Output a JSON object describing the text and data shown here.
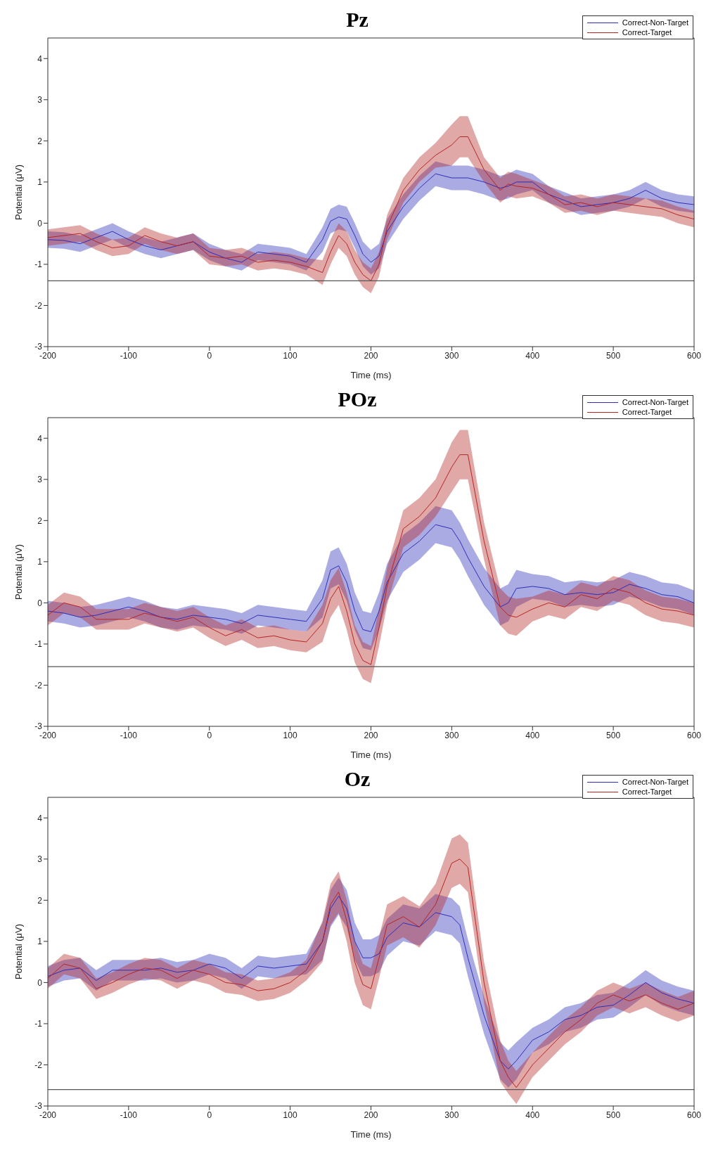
{
  "chart_data": [
    {
      "type": "line",
      "title": "Pz",
      "xlabel": "Time (ms)",
      "ylabel": "Potential (μV)",
      "xlim": [
        -200,
        600
      ],
      "ylim": [
        -3,
        4.5
      ],
      "xticks": [
        -200,
        -100,
        0,
        100,
        200,
        300,
        400,
        500,
        600
      ],
      "yticks": [
        -3,
        -2,
        -1,
        0,
        1,
        2,
        3,
        4
      ],
      "legend": "top right",
      "ref_lines": [
        {
          "axis": "y",
          "value": -1.4,
          "color": "#555555"
        }
      ],
      "x": [
        -200,
        -180,
        -160,
        -140,
        -120,
        -100,
        -80,
        -60,
        -40,
        -20,
        0,
        20,
        40,
        60,
        80,
        100,
        120,
        140,
        150,
        160,
        170,
        180,
        190,
        200,
        210,
        220,
        240,
        260,
        280,
        300,
        310,
        320,
        340,
        360,
        370,
        380,
        400,
        420,
        440,
        460,
        480,
        500,
        520,
        540,
        560,
        580,
        600
      ],
      "series": [
        {
          "name": "Correct-Non-Target",
          "color": "#2e2eb8",
          "values": [
            -0.4,
            -0.42,
            -0.5,
            -0.35,
            -0.2,
            -0.4,
            -0.55,
            -0.65,
            -0.55,
            -0.45,
            -0.7,
            -0.85,
            -0.95,
            -0.7,
            -0.75,
            -0.8,
            -0.95,
            -0.4,
            0.05,
            0.15,
            0.1,
            -0.3,
            -0.75,
            -0.95,
            -0.8,
            -0.2,
            0.4,
            0.85,
            1.2,
            1.1,
            1.1,
            1.1,
            1.0,
            0.85,
            0.9,
            1.0,
            1.0,
            0.7,
            0.55,
            0.4,
            0.45,
            0.5,
            0.6,
            0.8,
            0.6,
            0.5,
            0.45
          ],
          "lower": [
            -0.6,
            -0.62,
            -0.7,
            -0.55,
            -0.4,
            -0.6,
            -0.75,
            -0.85,
            -0.75,
            -0.65,
            -0.9,
            -1.05,
            -1.15,
            -0.9,
            -0.95,
            -1.0,
            -1.15,
            -0.7,
            -0.25,
            -0.15,
            -0.2,
            -0.6,
            -1.05,
            -1.25,
            -1.1,
            -0.5,
            0.1,
            0.55,
            0.9,
            0.8,
            0.8,
            0.8,
            0.7,
            0.55,
            0.6,
            0.7,
            0.8,
            0.5,
            0.35,
            0.2,
            0.25,
            0.3,
            0.4,
            0.6,
            0.4,
            0.3,
            0.25
          ],
          "upper": [
            -0.2,
            -0.22,
            -0.3,
            -0.15,
            0.0,
            -0.2,
            -0.35,
            -0.45,
            -0.35,
            -0.25,
            -0.5,
            -0.65,
            -0.75,
            -0.5,
            -0.55,
            -0.6,
            -0.75,
            -0.1,
            0.35,
            0.45,
            0.4,
            0.0,
            -0.45,
            -0.65,
            -0.5,
            0.1,
            0.7,
            1.15,
            1.5,
            1.4,
            1.4,
            1.4,
            1.3,
            1.15,
            1.2,
            1.3,
            1.2,
            0.9,
            0.75,
            0.6,
            0.65,
            0.7,
            0.8,
            1.0,
            0.8,
            0.7,
            0.65
          ]
        },
        {
          "name": "Correct-Target",
          "color": "#b52525",
          "values": [
            -0.35,
            -0.3,
            -0.25,
            -0.45,
            -0.6,
            -0.55,
            -0.3,
            -0.45,
            -0.55,
            -0.45,
            -0.8,
            -0.85,
            -0.8,
            -0.95,
            -0.9,
            -0.95,
            -1.05,
            -1.2,
            -0.7,
            -0.3,
            -0.5,
            -0.95,
            -1.25,
            -1.4,
            -1.0,
            -0.1,
            0.8,
            1.3,
            1.65,
            1.9,
            2.1,
            2.1,
            1.3,
            0.8,
            0.95,
            0.9,
            0.85,
            0.7,
            0.45,
            0.5,
            0.4,
            0.5,
            0.45,
            0.4,
            0.35,
            0.2,
            0.1
          ],
          "lower": [
            -0.55,
            -0.5,
            -0.45,
            -0.65,
            -0.8,
            -0.75,
            -0.5,
            -0.65,
            -0.75,
            -0.65,
            -1.0,
            -1.05,
            -1.0,
            -1.15,
            -1.1,
            -1.15,
            -1.25,
            -1.5,
            -1.0,
            -0.6,
            -0.8,
            -1.25,
            -1.55,
            -1.7,
            -1.3,
            -0.4,
            0.5,
            1.0,
            1.35,
            1.4,
            1.6,
            1.6,
            1.0,
            0.5,
            0.65,
            0.6,
            0.65,
            0.5,
            0.25,
            0.3,
            0.2,
            0.3,
            0.25,
            0.2,
            0.15,
            0.0,
            -0.1
          ],
          "upper": [
            -0.15,
            -0.1,
            -0.05,
            -0.25,
            -0.4,
            -0.35,
            -0.1,
            -0.25,
            -0.35,
            -0.25,
            -0.6,
            -0.65,
            -0.6,
            -0.75,
            -0.7,
            -0.75,
            -0.85,
            -0.9,
            -0.4,
            0.0,
            -0.2,
            -0.65,
            -0.95,
            -1.1,
            -0.7,
            0.2,
            1.1,
            1.6,
            1.95,
            2.4,
            2.6,
            2.6,
            1.6,
            1.1,
            1.25,
            1.2,
            1.05,
            0.9,
            0.65,
            0.7,
            0.6,
            0.7,
            0.65,
            0.6,
            0.55,
            0.4,
            0.3
          ]
        }
      ]
    },
    {
      "type": "line",
      "title": "POz",
      "xlabel": "Time (ms)",
      "ylabel": "Potential (μV)",
      "xlim": [
        -200,
        600
      ],
      "ylim": [
        -3,
        4.5
      ],
      "xticks": [
        -200,
        -100,
        0,
        100,
        200,
        300,
        400,
        500,
        600
      ],
      "yticks": [
        -3,
        -2,
        -1,
        0,
        1,
        2,
        3,
        4
      ],
      "legend": "top right",
      "ref_lines": [
        {
          "axis": "y",
          "value": -1.55,
          "color": "#555555"
        }
      ],
      "x": [
        -200,
        -180,
        -160,
        -140,
        -120,
        -100,
        -80,
        -60,
        -40,
        -20,
        0,
        20,
        40,
        60,
        80,
        100,
        120,
        140,
        150,
        160,
        170,
        180,
        190,
        200,
        210,
        220,
        240,
        260,
        280,
        300,
        310,
        320,
        340,
        360,
        370,
        380,
        400,
        420,
        440,
        460,
        480,
        500,
        520,
        540,
        560,
        580,
        600
      ],
      "series": [
        {
          "name": "Correct-Non-Target",
          "color": "#2e2eb8",
          "values": [
            -0.2,
            -0.25,
            -0.35,
            -0.3,
            -0.2,
            -0.1,
            -0.2,
            -0.35,
            -0.4,
            -0.3,
            -0.35,
            -0.4,
            -0.5,
            -0.3,
            -0.35,
            -0.4,
            -0.45,
            0.1,
            0.8,
            0.9,
            0.5,
            -0.2,
            -0.65,
            -0.7,
            -0.2,
            0.5,
            1.2,
            1.5,
            1.9,
            1.8,
            1.5,
            1.1,
            0.4,
            -0.1,
            0.0,
            0.35,
            0.4,
            0.35,
            0.2,
            0.25,
            0.2,
            0.25,
            0.45,
            0.35,
            0.2,
            0.15,
            0.0
          ],
          "lower": [
            -0.45,
            -0.5,
            -0.6,
            -0.55,
            -0.45,
            -0.35,
            -0.45,
            -0.6,
            -0.65,
            -0.55,
            -0.6,
            -0.65,
            -0.75,
            -0.55,
            -0.6,
            -0.65,
            -0.7,
            -0.35,
            0.35,
            0.45,
            0.05,
            -0.65,
            -1.1,
            -1.15,
            -0.65,
            0.05,
            0.75,
            1.05,
            1.45,
            1.35,
            1.05,
            0.65,
            -0.05,
            -0.55,
            -0.45,
            -0.1,
            0.1,
            0.05,
            -0.1,
            -0.05,
            -0.1,
            -0.05,
            0.15,
            0.05,
            -0.1,
            -0.15,
            -0.3
          ],
          "upper": [
            0.05,
            0.0,
            -0.1,
            -0.05,
            0.05,
            0.15,
            0.05,
            -0.1,
            -0.15,
            -0.05,
            -0.1,
            -0.15,
            -0.25,
            -0.05,
            -0.1,
            -0.15,
            -0.2,
            0.55,
            1.25,
            1.35,
            0.95,
            0.25,
            -0.2,
            -0.25,
            0.25,
            0.95,
            1.65,
            1.95,
            2.35,
            2.25,
            1.95,
            1.55,
            0.85,
            0.35,
            0.45,
            0.8,
            0.7,
            0.65,
            0.5,
            0.55,
            0.5,
            0.55,
            0.75,
            0.65,
            0.5,
            0.45,
            0.3
          ]
        },
        {
          "name": "Correct-Target",
          "color": "#b52525",
          "values": [
            -0.3,
            0.0,
            -0.1,
            -0.4,
            -0.4,
            -0.4,
            -0.25,
            -0.35,
            -0.45,
            -0.35,
            -0.6,
            -0.8,
            -0.65,
            -0.85,
            -0.8,
            -0.9,
            -0.95,
            -0.5,
            0.1,
            0.4,
            -0.2,
            -1.0,
            -1.4,
            -1.5,
            -0.6,
            0.4,
            1.8,
            2.1,
            2.55,
            3.3,
            3.6,
            3.6,
            1.5,
            -0.1,
            -0.3,
            -0.35,
            -0.15,
            0.0,
            -0.1,
            0.2,
            0.1,
            0.35,
            0.25,
            0.0,
            -0.15,
            -0.2,
            -0.3
          ],
          "lower": [
            -0.55,
            -0.25,
            -0.35,
            -0.65,
            -0.65,
            -0.65,
            -0.5,
            -0.6,
            -0.7,
            -0.6,
            -0.85,
            -1.05,
            -0.9,
            -1.1,
            -1.05,
            -1.15,
            -1.2,
            -0.95,
            -0.35,
            -0.05,
            -0.65,
            -1.45,
            -1.85,
            -1.95,
            -1.05,
            -0.05,
            1.35,
            1.65,
            2.1,
            2.7,
            3.0,
            3.0,
            1.05,
            -0.55,
            -0.75,
            -0.8,
            -0.45,
            -0.3,
            -0.4,
            -0.1,
            -0.2,
            0.05,
            -0.05,
            -0.3,
            -0.45,
            -0.5,
            -0.6
          ],
          "upper": [
            -0.05,
            0.25,
            0.15,
            -0.15,
            -0.15,
            -0.15,
            0.0,
            -0.1,
            -0.2,
            -0.1,
            -0.35,
            -0.55,
            -0.4,
            -0.6,
            -0.55,
            -0.65,
            -0.7,
            -0.05,
            0.55,
            0.85,
            0.25,
            -0.55,
            -0.95,
            -1.05,
            -0.15,
            0.85,
            2.25,
            2.55,
            3.0,
            3.9,
            4.2,
            4.2,
            1.95,
            0.35,
            0.15,
            0.1,
            0.15,
            0.3,
            0.2,
            0.5,
            0.4,
            0.65,
            0.55,
            0.3,
            0.15,
            0.1,
            0.0
          ]
        }
      ]
    },
    {
      "type": "line",
      "title": "Oz",
      "xlabel": "Time (ms)",
      "ylabel": "Potential (μV)",
      "xlim": [
        -200,
        600
      ],
      "ylim": [
        -3,
        4.5
      ],
      "xticks": [
        -200,
        -100,
        0,
        100,
        200,
        300,
        400,
        500,
        600
      ],
      "yticks": [
        -3,
        -2,
        -1,
        0,
        1,
        2,
        3,
        4
      ],
      "legend": "top right",
      "ref_lines": [
        {
          "axis": "y",
          "value": -2.6,
          "color": "#555555"
        }
      ],
      "x": [
        -200,
        -180,
        -160,
        -140,
        -120,
        -100,
        -80,
        -60,
        -40,
        -20,
        0,
        20,
        40,
        60,
        80,
        100,
        120,
        140,
        150,
        160,
        170,
        180,
        190,
        200,
        210,
        220,
        240,
        260,
        280,
        300,
        310,
        320,
        340,
        360,
        370,
        380,
        400,
        420,
        440,
        460,
        480,
        500,
        520,
        540,
        560,
        580,
        600
      ],
      "series": [
        {
          "name": "Correct-Non-Target",
          "color": "#2e2eb8",
          "values": [
            0.15,
            0.3,
            0.35,
            0.05,
            0.3,
            0.3,
            0.3,
            0.35,
            0.25,
            0.3,
            0.45,
            0.35,
            0.1,
            0.4,
            0.35,
            0.4,
            0.45,
            1.0,
            1.8,
            2.1,
            1.8,
            1.0,
            0.6,
            0.6,
            0.7,
            1.1,
            1.45,
            1.35,
            1.7,
            1.6,
            1.4,
            0.6,
            -0.8,
            -1.9,
            -2.1,
            -1.9,
            -1.4,
            -1.2,
            -0.9,
            -0.8,
            -0.6,
            -0.55,
            -0.3,
            0.0,
            -0.25,
            -0.4,
            -0.5
          ],
          "lower": [
            -0.1,
            0.05,
            0.1,
            -0.2,
            0.05,
            0.05,
            0.05,
            0.1,
            0.0,
            0.05,
            0.2,
            0.1,
            -0.15,
            0.15,
            0.1,
            0.15,
            0.2,
            0.55,
            1.35,
            1.65,
            1.35,
            0.55,
            0.15,
            0.15,
            0.25,
            0.65,
            1.0,
            0.9,
            1.25,
            1.15,
            0.95,
            0.15,
            -1.25,
            -2.35,
            -2.55,
            -2.35,
            -1.7,
            -1.5,
            -1.2,
            -1.1,
            -0.9,
            -0.85,
            -0.6,
            -0.3,
            -0.55,
            -0.7,
            -0.8
          ],
          "upper": [
            0.4,
            0.55,
            0.6,
            0.3,
            0.55,
            0.55,
            0.55,
            0.6,
            0.5,
            0.55,
            0.7,
            0.6,
            0.35,
            0.65,
            0.6,
            0.65,
            0.7,
            1.45,
            2.25,
            2.55,
            2.25,
            1.45,
            1.05,
            1.05,
            1.15,
            1.55,
            1.9,
            1.8,
            2.15,
            2.05,
            1.85,
            1.05,
            -0.35,
            -1.45,
            -1.65,
            -1.45,
            -1.1,
            -0.9,
            -0.6,
            -0.5,
            -0.3,
            -0.25,
            0.0,
            0.3,
            0.05,
            -0.1,
            -0.2
          ]
        },
        {
          "name": "Correct-Target",
          "color": "#b52525",
          "values": [
            0.1,
            0.45,
            0.35,
            -0.15,
            0.0,
            0.2,
            0.35,
            0.3,
            0.1,
            0.3,
            0.2,
            0.0,
            -0.05,
            -0.2,
            -0.15,
            0.0,
            0.3,
            1.0,
            1.9,
            2.2,
            1.5,
            0.5,
            -0.05,
            -0.15,
            0.6,
            1.4,
            1.6,
            1.35,
            1.9,
            2.9,
            3.0,
            2.8,
            0.0,
            -1.9,
            -2.3,
            -2.55,
            -2.0,
            -1.6,
            -1.2,
            -0.9,
            -0.5,
            -0.3,
            -0.45,
            -0.3,
            -0.5,
            -0.65,
            -0.5
          ],
          "lower": [
            -0.15,
            0.2,
            0.1,
            -0.4,
            -0.25,
            -0.05,
            0.1,
            0.05,
            -0.15,
            0.05,
            -0.05,
            -0.25,
            -0.3,
            -0.45,
            -0.4,
            -0.25,
            0.05,
            0.5,
            1.4,
            1.7,
            1.0,
            0.0,
            -0.55,
            -0.65,
            0.1,
            0.9,
            1.1,
            0.85,
            1.4,
            2.3,
            2.4,
            2.2,
            -0.5,
            -2.4,
            -2.7,
            -2.95,
            -2.3,
            -1.9,
            -1.5,
            -1.2,
            -0.8,
            -0.6,
            -0.75,
            -0.6,
            -0.8,
            -0.95,
            -0.8
          ],
          "upper": [
            0.35,
            0.7,
            0.6,
            0.1,
            0.25,
            0.45,
            0.6,
            0.55,
            0.35,
            0.55,
            0.45,
            0.25,
            0.2,
            0.05,
            0.1,
            0.25,
            0.55,
            1.5,
            2.4,
            2.7,
            2.0,
            1.0,
            0.45,
            0.35,
            1.1,
            1.9,
            2.1,
            1.85,
            2.4,
            3.5,
            3.6,
            3.4,
            0.5,
            -1.4,
            -1.9,
            -2.15,
            -1.7,
            -1.3,
            -0.9,
            -0.6,
            -0.2,
            0.0,
            -0.15,
            0.0,
            -0.2,
            -0.35,
            -0.2
          ]
        }
      ]
    }
  ]
}
